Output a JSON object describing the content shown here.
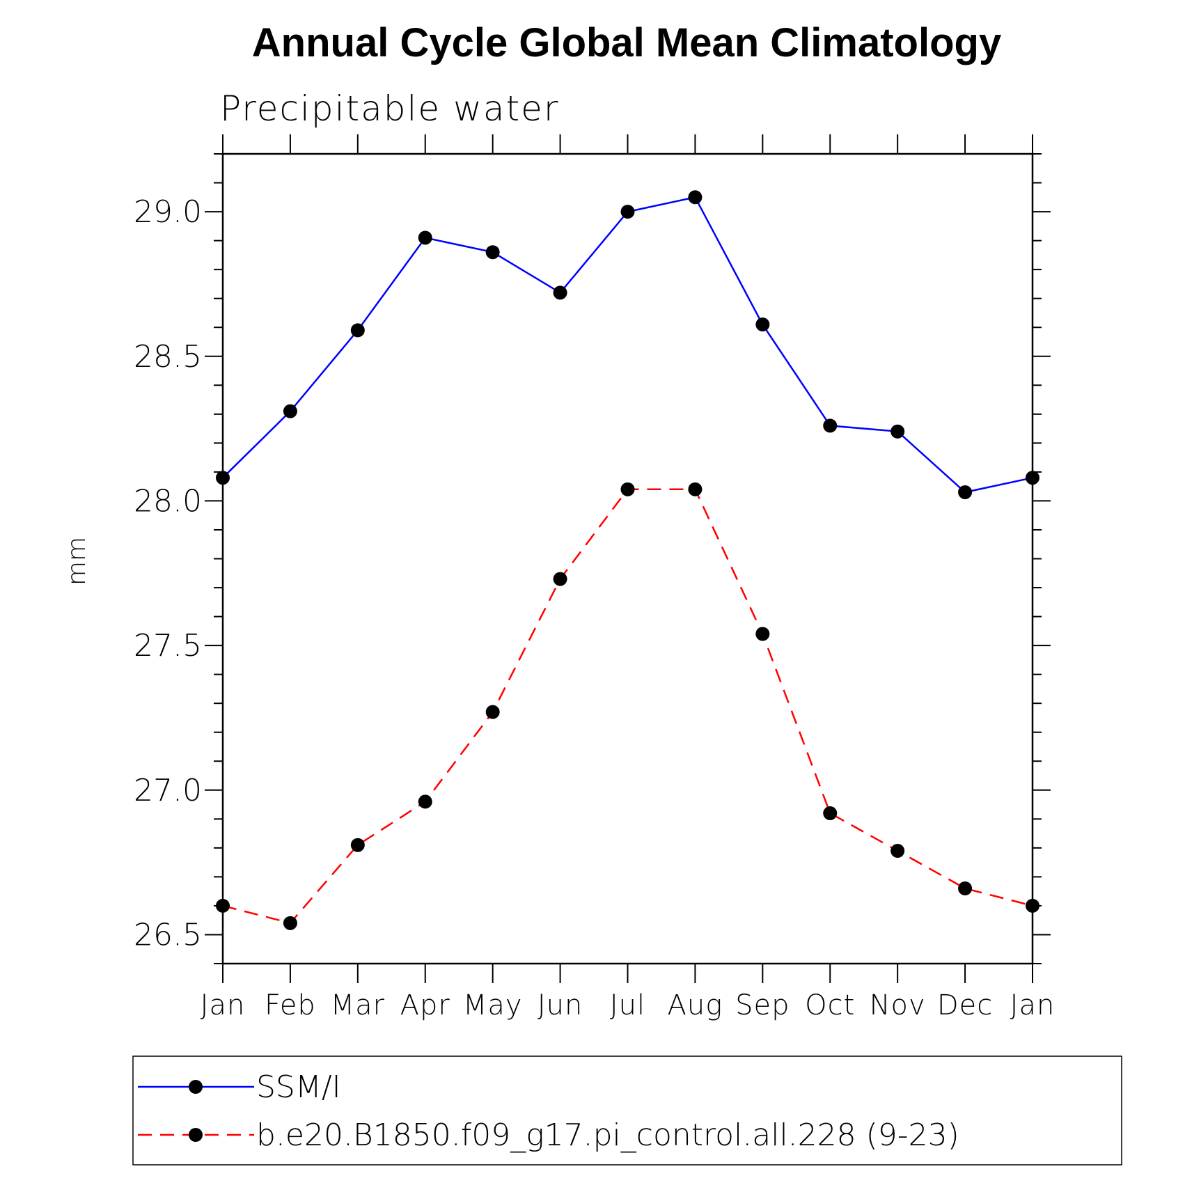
{
  "chart_data": {
    "type": "line",
    "title": "Annual Cycle Global Mean Climatology",
    "subtitle": "Precipitable water",
    "xlabel": "",
    "ylabel": "mm",
    "categories": [
      "Jan",
      "Feb",
      "Mar",
      "Apr",
      "May",
      "Jun",
      "Jul",
      "Aug",
      "Sep",
      "Oct",
      "Nov",
      "Dec",
      "Jan"
    ],
    "ylim": [
      26.4,
      29.2
    ],
    "yticks": [
      "26.5",
      "27.0",
      "27.5",
      "28.0",
      "28.5",
      "29.0"
    ],
    "grid": false,
    "legend_position": "bottom",
    "series": [
      {
        "name": "SSM/I",
        "color": "#0000ff",
        "dash": "solid",
        "values": [
          28.08,
          28.31,
          28.59,
          28.91,
          28.86,
          28.72,
          29.0,
          29.05,
          28.61,
          28.26,
          28.24,
          28.03,
          28.08
        ]
      },
      {
        "name": "b.e20.B1850.f09_g17.pi_control.all.228 (9-23)",
        "color": "#ff0000",
        "dash": "dashed",
        "values": [
          26.6,
          26.54,
          26.81,
          26.96,
          27.27,
          27.73,
          28.04,
          28.04,
          27.54,
          26.92,
          26.79,
          26.66,
          26.6
        ]
      }
    ]
  }
}
